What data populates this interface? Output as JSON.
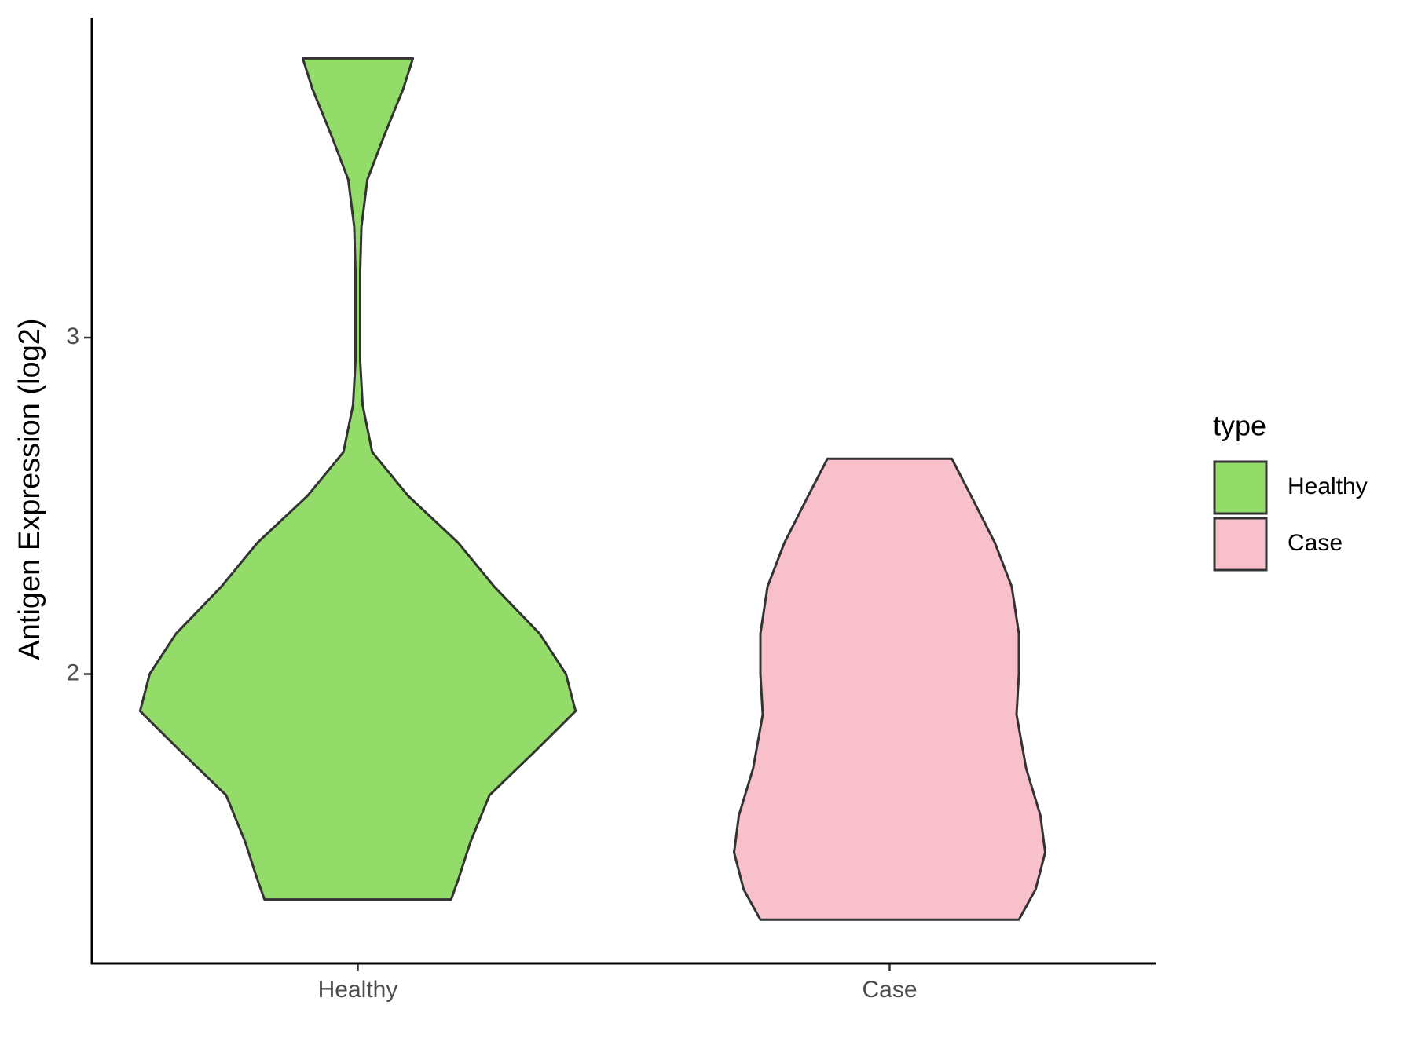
{
  "chart_data": {
    "type": "violin",
    "y_label": "Antigen Expression (log2)",
    "categories": [
      "Healthy",
      "Case"
    ],
    "series": [
      {
        "name": "Healthy",
        "color": "#93dc6a",
        "y": [
          3.83,
          3.74,
          3.6,
          3.47,
          3.33,
          3.2,
          2.93,
          2.8,
          2.66,
          2.53,
          2.39,
          2.26,
          2.12,
          2.0,
          1.89,
          1.77,
          1.64,
          1.5,
          1.39,
          1.33
        ],
        "width": [
          0.23,
          0.19,
          0.11,
          0.04,
          0.015,
          0.01,
          0.01,
          0.02,
          0.06,
          0.21,
          0.42,
          0.57,
          0.76,
          0.87,
          0.91,
          0.74,
          0.55,
          0.47,
          0.42,
          0.39
        ]
      },
      {
        "name": "Case",
        "color": "#f8c0cb",
        "y": [
          2.64,
          2.53,
          2.39,
          2.26,
          2.12,
          2.0,
          1.88,
          1.72,
          1.58,
          1.47,
          1.36,
          1.27
        ],
        "width": [
          0.26,
          0.34,
          0.44,
          0.51,
          0.54,
          0.54,
          0.53,
          0.57,
          0.63,
          0.65,
          0.61,
          0.54
        ]
      }
    ],
    "ylim": [
      1.14,
      3.95
    ],
    "yticks": [
      2,
      3
    ],
    "legend_title": "type",
    "legend_position": "right"
  }
}
